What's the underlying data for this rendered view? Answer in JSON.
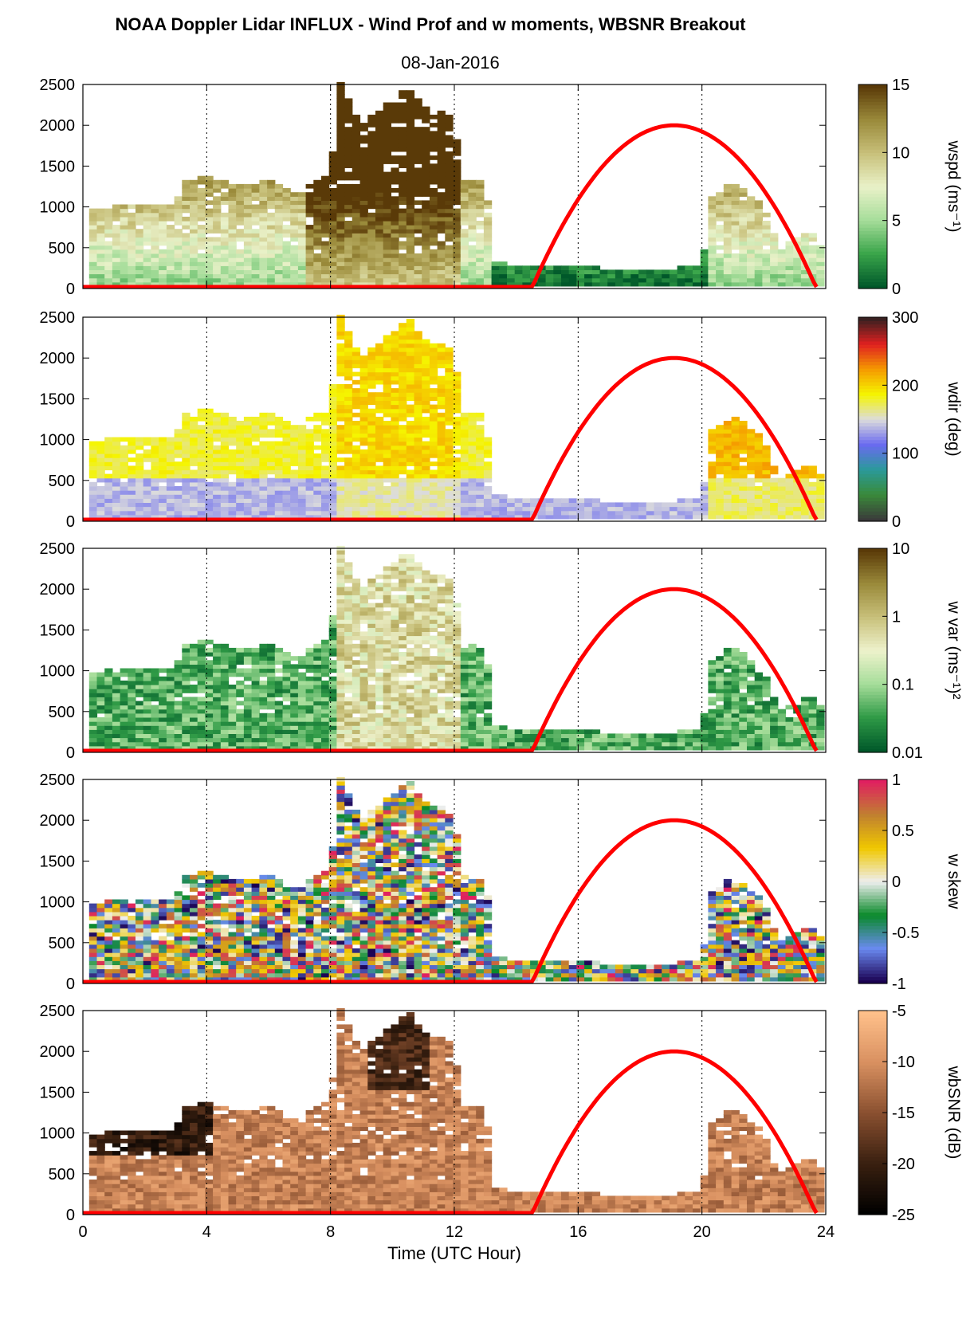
{
  "title": "NOAA Doppler Lidar INFLUX - Wind Prof and w moments, WBSNR Breakout",
  "date": "08-Jan-2016",
  "chart_data": {
    "type": "heatmap",
    "xlabel": "Time (UTC Hour)",
    "xlim": [
      0,
      24
    ],
    "xticks": [
      "0",
      "4",
      "8",
      "12",
      "16",
      "20",
      "24"
    ],
    "ylim": [
      0,
      2500
    ],
    "yticks": [
      "0",
      "500",
      "1000",
      "1500",
      "2000",
      "2500"
    ],
    "vertical_gridlines_hours": [
      4,
      8,
      12,
      16,
      20
    ],
    "overlay_curve": {
      "color": "#ff0000",
      "baseline_hours": [
        0,
        14.5
      ],
      "arc": {
        "start_hour": 14.5,
        "peak_hour": 19.1,
        "end_hour": 23.7,
        "peak_value": 2000
      }
    },
    "panels": [
      {
        "id": "wspd",
        "colorbar_label": "wspd (ms⁻¹)",
        "colorbar_ticks": [
          "0",
          "5",
          "10",
          "15"
        ],
        "clim": [
          0,
          15
        ],
        "colors": [
          "#00582a",
          "#3aa54a",
          "#a6dd9a",
          "#e9f1c8",
          "#c8c07a",
          "#9a8a3a",
          "#5a3a08"
        ]
      },
      {
        "id": "wdir",
        "colorbar_label": "wdir (deg)",
        "colorbar_ticks": [
          "0",
          "100",
          "200",
          "300"
        ],
        "clim": [
          0,
          360
        ],
        "colors": [
          "#3a3a3a",
          "#3a8a3a",
          "#2a9a9a",
          "#6a6af0",
          "#dcdcdc",
          "#f5f500",
          "#f59a00",
          "#e02020",
          "#3a2020"
        ]
      },
      {
        "id": "wvar",
        "colorbar_label": "w var (ms⁻¹)²",
        "colorbar_ticks": [
          "0.01",
          "0.1",
          "1",
          "10"
        ],
        "clim": [
          0.01,
          10
        ],
        "log": true,
        "colors": [
          "#00582a",
          "#2f9a46",
          "#a6dd9a",
          "#eef2cc",
          "#c8c07a",
          "#9a8a3a",
          "#5a3a08"
        ]
      },
      {
        "id": "wskew",
        "colorbar_label": "w skew",
        "colorbar_ticks": [
          "-1",
          "-0.5",
          "0",
          "0.5",
          "1"
        ],
        "clim": [
          -1,
          1
        ],
        "colors": [
          "#1a0050",
          "#6a8af0",
          "#0a8a2a",
          "#eeeeee",
          "#f0c800",
          "#c08030",
          "#e02060"
        ]
      },
      {
        "id": "wbsnr",
        "colorbar_label": "wbSNR (dB)",
        "colorbar_ticks": [
          "-25",
          "-20",
          "-15",
          "-10",
          "-5"
        ],
        "clim": [
          -25,
          -5
        ],
        "colors": [
          "#000000",
          "#3a2010",
          "#8a5030",
          "#d89060",
          "#ffc08a"
        ]
      }
    ]
  }
}
